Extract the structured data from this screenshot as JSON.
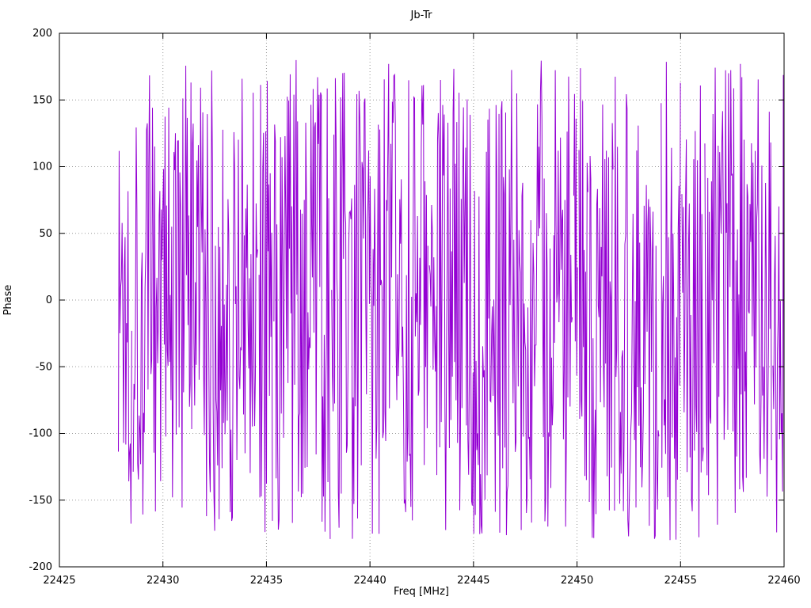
{
  "chart": {
    "title": "Jb-Tr",
    "xlabel": "Freq [MHz]",
    "ylabel": "Phase"
  },
  "chart_data": {
    "type": "line",
    "title": "Jb-Tr",
    "xlabel": "Freq [MHz]",
    "ylabel": "Phase",
    "xlim": [
      22425,
      22460
    ],
    "ylim": [
      -200,
      200
    ],
    "x_ticks": [
      22425,
      22430,
      22435,
      22440,
      22445,
      22450,
      22455,
      22460
    ],
    "y_ticks": [
      -200,
      -150,
      -100,
      -50,
      0,
      50,
      100,
      150,
      200
    ],
    "grid": true,
    "grid_style": "dotted",
    "legend": "none",
    "background": "#ffffff",
    "series": [
      {
        "name": "phase",
        "color": "#9400D3",
        "description": "dense pseudo-random fringe phase noise connected point-to-point, uniformly filling -180 to +180 degrees",
        "x_start": 22427.85,
        "x_end": 22460.0,
        "n_points": 900,
        "y_min": -180,
        "y_max": 180,
        "gap_probability": 0.015,
        "seed": 1337
      }
    ]
  }
}
